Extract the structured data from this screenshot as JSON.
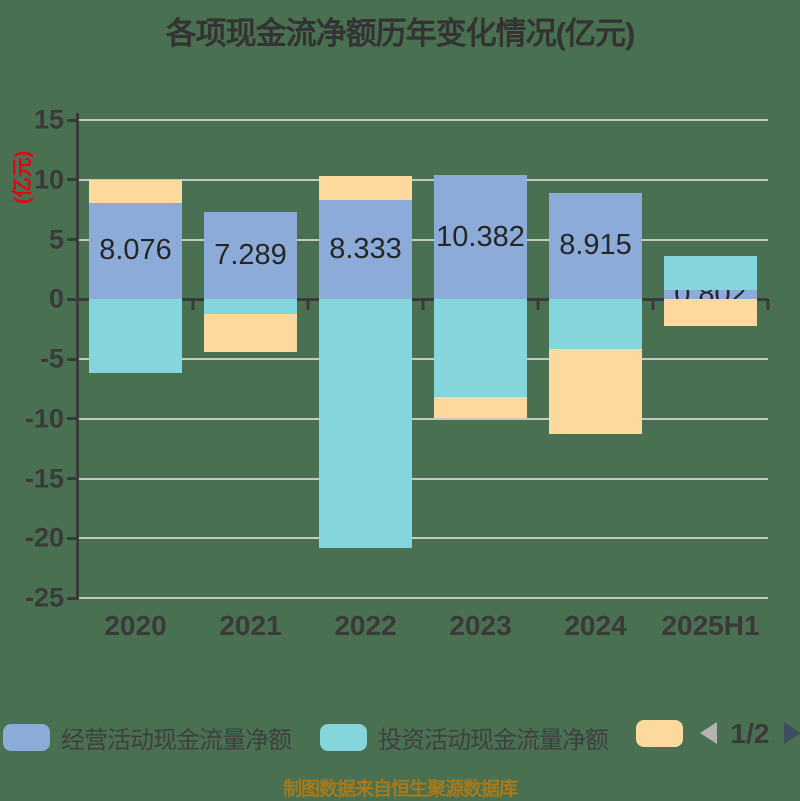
{
  "title": "各项现金流净额历年变化情况(亿元)",
  "y_axis": {
    "unit_label": "(亿元)",
    "ticks": [
      "15",
      "10",
      "5",
      "0",
      "-5",
      "-10",
      "-15",
      "-20",
      "-25"
    ]
  },
  "chart_data": {
    "type": "bar",
    "stacked": true,
    "title": "各项现金流净额历年变化情况(亿元)",
    "xlabel": "",
    "ylabel": "(亿元)",
    "ylim": [
      -25,
      15
    ],
    "grid": true,
    "legend_position": "bottom",
    "categories": [
      "2020",
      "2021",
      "2022",
      "2023",
      "2024",
      "2025H1"
    ],
    "series": [
      {
        "name": "经营活动现金流量净额",
        "color": "#8dabd9",
        "values": [
          8.076,
          7.289,
          8.333,
          10.382,
          8.915,
          0.802
        ]
      },
      {
        "name": "投资活动现金流量净额",
        "color": "#85d6dc",
        "values": [
          -6.2,
          -1.2,
          -20.8,
          -8.2,
          -4.2,
          2.8
        ]
      },
      {
        "name": "",
        "color": "#fdd99e",
        "values": [
          1.9,
          -3.2,
          2.0,
          -1.7,
          -7.1,
          -2.2
        ]
      }
    ],
    "bar_labels": [
      "8.076",
      "7.289",
      "8.333",
      "10.382",
      "8.915",
      "0.802"
    ]
  },
  "legend": {
    "items": [
      {
        "label": "经营活动现金流量净额",
        "color": "#8dabd9"
      },
      {
        "label": "投资活动现金流量净额",
        "color": "#85d6dc"
      },
      {
        "label": "",
        "color": "#fdd99e"
      }
    ],
    "pagination": {
      "page": "1/2"
    }
  },
  "footer": {
    "source_note": "制图数据来自恒生聚源数据库"
  },
  "colors": {
    "background": "#4a7052",
    "grid": "#c7c7c7",
    "axis": "#3a3a3a",
    "title": "#333333",
    "unit_label": "#e60012",
    "bar_label": "#262626",
    "pager_prev": "#b3b3b3",
    "pager_next": "#3d4e60",
    "footer": "#a6791a"
  }
}
